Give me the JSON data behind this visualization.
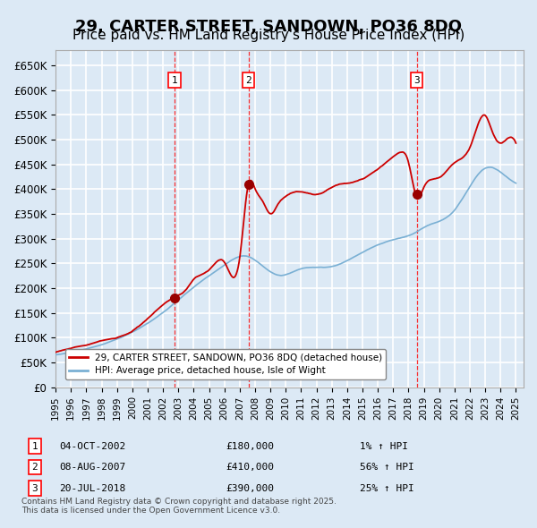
{
  "title": "29, CARTER STREET, SANDOWN, PO36 8DQ",
  "subtitle": "Price paid vs. HM Land Registry's House Price Index (HPI)",
  "title_fontsize": 13,
  "subtitle_fontsize": 11,
  "background_color": "#dce9f5",
  "plot_bg_color": "#dce9f5",
  "grid_color": "#ffffff",
  "ylim": [
    0,
    680000
  ],
  "ytick_values": [
    0,
    50000,
    100000,
    150000,
    200000,
    250000,
    300000,
    350000,
    400000,
    450000,
    500000,
    550000,
    600000,
    650000
  ],
  "ytick_labels": [
    "£0",
    "£50K",
    "£100K",
    "£150K",
    "£200K",
    "£250K",
    "£300K",
    "£350K",
    "£400K",
    "£450K",
    "£500K",
    "£550K",
    "£600K",
    "£650K"
  ],
  "sale_color": "#cc0000",
  "hpi_color": "#7ab0d4",
  "sale_marker_color": "#990000",
  "transactions": [
    {
      "num": 1,
      "date": "04-OCT-2002",
      "price": 180000,
      "pct": "1%",
      "x_year": 2002.75
    },
    {
      "num": 2,
      "date": "08-AUG-2007",
      "price": 410000,
      "pct": "56%",
      "x_year": 2007.58
    },
    {
      "num": 3,
      "date": "20-JUL-2018",
      "price": 390000,
      "pct": "25%",
      "x_year": 2018.54
    }
  ],
  "legend_label_sale": "29, CARTER STREET, SANDOWN, PO36 8DQ (detached house)",
  "legend_label_hpi": "HPI: Average price, detached house, Isle of Wight",
  "footer_text": "Contains HM Land Registry data © Crown copyright and database right 2025.\nThis data is licensed under the Open Government Licence v3.0.",
  "xtick_years": [
    1995,
    1996,
    1997,
    1998,
    1999,
    2000,
    2001,
    2002,
    2003,
    2004,
    2005,
    2006,
    2007,
    2008,
    2009,
    2010,
    2011,
    2012,
    2013,
    2014,
    2015,
    2016,
    2017,
    2018,
    2019,
    2020,
    2021,
    2022,
    2023,
    2024,
    2025
  ]
}
